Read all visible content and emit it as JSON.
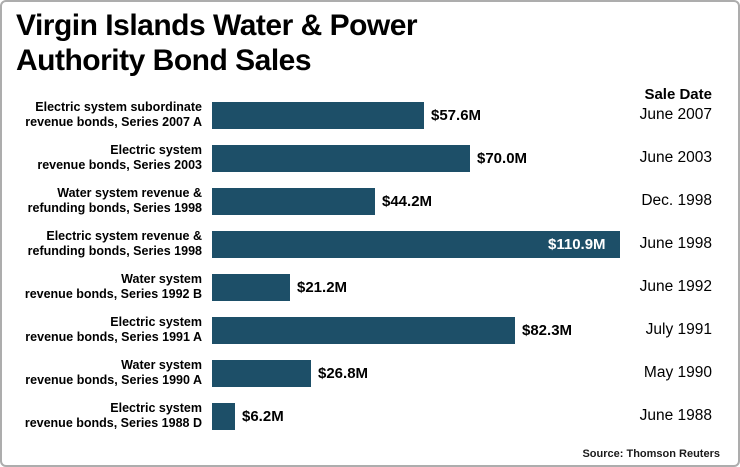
{
  "header": {
    "title_line1": "Virgin Islands Water & Power",
    "title_line2": "Authority Bond Sales",
    "sale_date_header": "Sale Date"
  },
  "footer": {
    "source": "Source: Thomson Reuters"
  },
  "chart_data": {
    "type": "bar",
    "orientation": "horizontal",
    "title": "Virgin Islands Water & Power Authority Bond Sales",
    "unit": "USD millions",
    "bar_color": "#1d4f68",
    "max_value": 110.9,
    "categories": [
      "Electric system subordinate revenue bonds, Series 2007 A",
      "Electric system revenue bonds, Series 2003",
      "Water system revenue & refunding bonds, Series 1998",
      "Electric system revenue & refunding bonds, Series 1998",
      "Water system revenue bonds, Series 1992 B",
      "Electric system revenue bonds, Series 1991 A",
      "Water system revenue bonds, Series 1990 A",
      "Electric system revenue bonds, Series 1988 D"
    ],
    "values": [
      57.6,
      70.0,
      44.2,
      110.9,
      21.2,
      82.3,
      26.8,
      6.2
    ],
    "value_labels": [
      "$57.6M",
      "$70.0M",
      "$44.2M",
      "$110.9M",
      "$21.2M",
      "$82.3M",
      "$26.8M",
      "$6.2M"
    ],
    "sale_dates": [
      "June 2007",
      "June 2003",
      "Dec. 1998",
      "June 1998",
      "June 1992",
      "July 1991",
      "May 1990",
      "June 1988"
    ],
    "rows": [
      {
        "label_line1": "Electric system subordinate",
        "label_line2": "revenue bonds, Series 2007 A",
        "value": 57.6,
        "value_label": "$57.6M",
        "date": "June 2007",
        "value_inside": false
      },
      {
        "label_line1": "Electric system",
        "label_line2": "revenue bonds, Series 2003",
        "value": 70.0,
        "value_label": "$70.0M",
        "date": "June 2003",
        "value_inside": false
      },
      {
        "label_line1": "Water system revenue &",
        "label_line2": "refunding bonds, Series 1998",
        "value": 44.2,
        "value_label": "$44.2M",
        "date": "Dec. 1998",
        "value_inside": false
      },
      {
        "label_line1": "Electric system revenue &",
        "label_line2": "refunding bonds, Series 1998",
        "value": 110.9,
        "value_label": "$110.9M",
        "date": "June 1998",
        "value_inside": true
      },
      {
        "label_line1": "Water system",
        "label_line2": "revenue bonds, Series 1992 B",
        "value": 21.2,
        "value_label": "$21.2M",
        "date": "June 1992",
        "value_inside": false
      },
      {
        "label_line1": "Electric system",
        "label_line2": "revenue bonds, Series 1991 A",
        "value": 82.3,
        "value_label": "$82.3M",
        "date": "July 1991",
        "value_inside": false
      },
      {
        "label_line1": "Water system",
        "label_line2": "revenue bonds, Series 1990 A",
        "value": 26.8,
        "value_label": "$26.8M",
        "date": "May 1990",
        "value_inside": false
      },
      {
        "label_line1": "Electric system",
        "label_line2": "revenue bonds, Series 1988 D",
        "value": 6.2,
        "value_label": "$6.2M",
        "date": "June 1988",
        "value_inside": false
      }
    ]
  }
}
